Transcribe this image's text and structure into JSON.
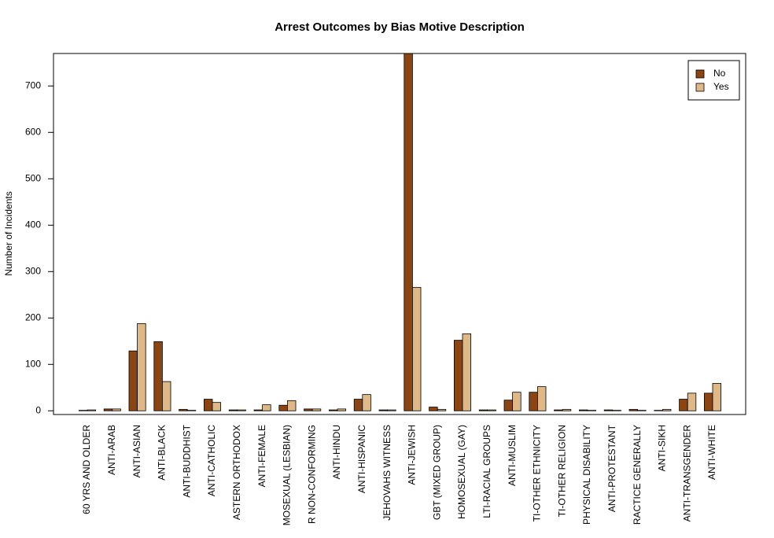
{
  "chart_data": {
    "type": "bar",
    "title": "Arrest Outcomes by Bias Motive Description",
    "y_label": "Number of Incidents",
    "categories": [
      "60 YRS AND OLDER",
      "ANTI-ARAB",
      "ANTI-ASIAN",
      "ANTI-BLACK",
      "ANTI-BUDDHIST",
      "ANTI-CATHOLIC",
      "ASTERN ORTHODOX",
      "ANTI-FEMALE",
      "MOSEXUAL (LESBIAN)",
      "R NON-CONFORMING",
      "ANTI-HINDU",
      "ANTI-HISPANIC",
      "JEHOVAHS WITNESS",
      "ANTI-JEWISH",
      "GBT (MIXED GROUP)",
      "HOMOSEXUAL (GAY)",
      "LTI-RACIAL GROUPS",
      "ANTI-MUSLIM",
      "TI-OTHER ETHNICITY",
      "TI-OTHER RELIGION",
      "PHYSICAL DISABILITY",
      "ANTI-PROTESTANT",
      "RACTICE GENERALLY",
      "ANTI-SIKH",
      "ANTI-TRANSGENDER",
      "ANTI-WHITE"
    ],
    "series": [
      {
        "name": "No",
        "color": "#8b4513",
        "values": [
          1,
          4,
          129,
          149,
          3,
          25,
          2,
          2,
          12,
          4,
          2,
          25,
          2,
          790,
          8,
          152,
          2,
          23,
          40,
          2,
          2,
          2,
          3,
          1,
          25,
          38
        ]
      },
      {
        "name": "Yes",
        "color": "#deb887",
        "values": [
          2,
          4,
          188,
          63,
          1,
          18,
          2,
          13,
          22,
          4,
          4,
          35,
          2,
          266,
          3,
          166,
          2,
          40,
          52,
          3,
          1,
          1,
          1,
          3,
          38,
          59
        ]
      }
    ],
    "ylim": [
      -8,
      770
    ],
    "yticks": [
      0,
      100,
      200,
      300,
      400,
      500,
      600,
      700
    ],
    "legend": "top-right"
  }
}
